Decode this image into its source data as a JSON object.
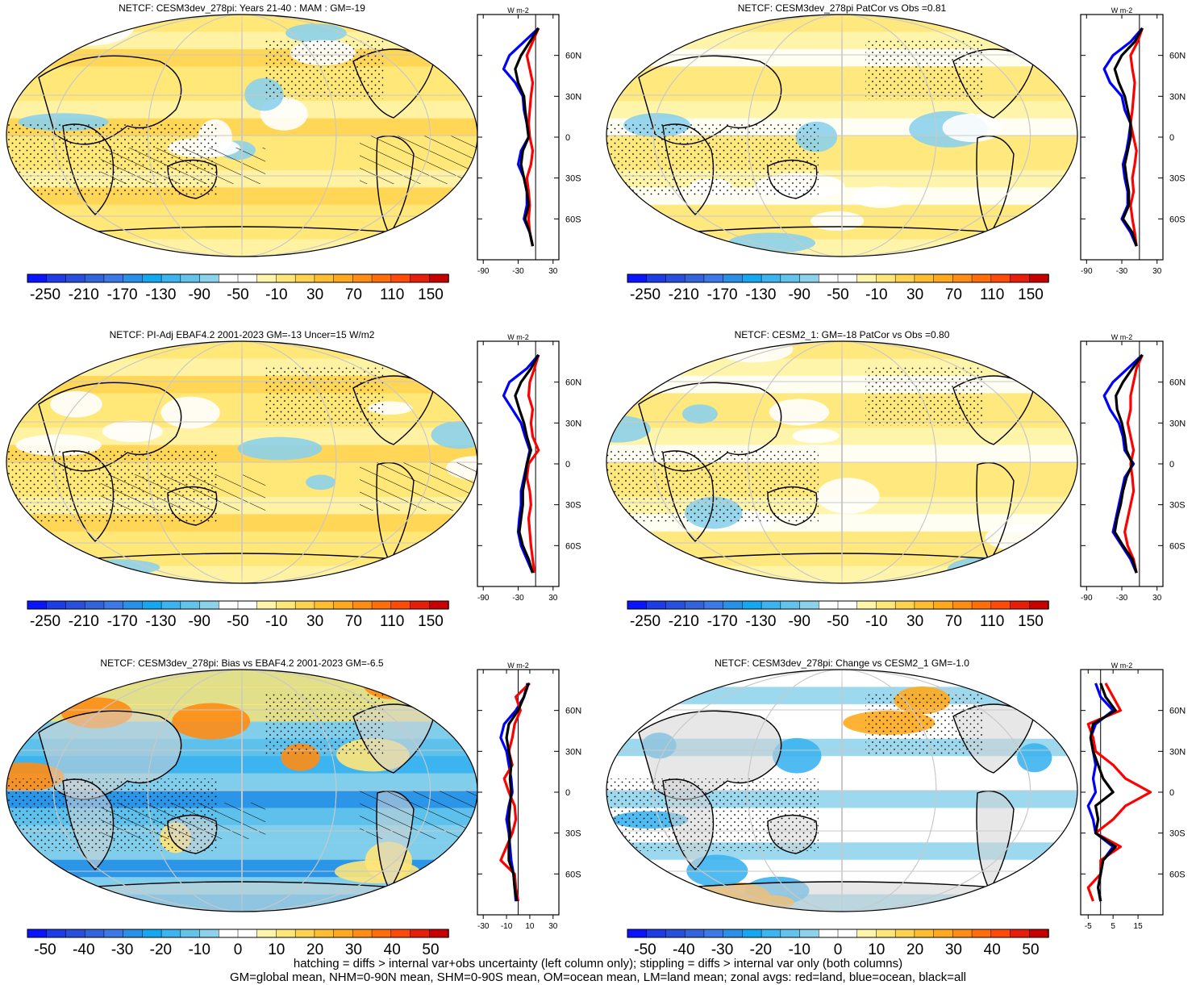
{
  "colors": {
    "land": "#d3d3d3",
    "outline": "#000000",
    "graticule": "#c8c8c8",
    "zonal_land": "#ff0000",
    "zonal_ocean": "#0000ff",
    "zonal_all": "#000000"
  },
  "scales": {
    "big": {
      "colors": [
        "#0a14ff",
        "#1e3ce6",
        "#2850dc",
        "#3264dc",
        "#3c78e6",
        "#2890e6",
        "#14a8f0",
        "#3cb4f0",
        "#64c3eb",
        "#8cd2eb",
        "#ffffff",
        "#ffffff",
        "#fff5aa",
        "#ffe678",
        "#ffd250",
        "#ffbe32",
        "#ffaa1e",
        "#ff8c14",
        "#ff6e0a",
        "#ff4b0a",
        "#e61e0a",
        "#c80000"
      ],
      "labels": [
        "-250",
        "-210",
        "-170",
        "-130",
        "-90",
        "-50",
        "-10",
        "30",
        "70",
        "110",
        "150"
      ]
    },
    "small": {
      "colors": [
        "#0a14ff",
        "#1e3ce6",
        "#2850dc",
        "#3264dc",
        "#3c78e6",
        "#2890e6",
        "#14a8f0",
        "#3cb4f0",
        "#64c3eb",
        "#8cd2eb",
        "#ffffff",
        "#ffffff",
        "#fff5aa",
        "#ffe678",
        "#ffd250",
        "#ffbe32",
        "#ffaa1e",
        "#ff8c14",
        "#ff6e0a",
        "#ff4b0a",
        "#e61e0a",
        "#c80000"
      ],
      "labels": [
        "-50",
        "-40",
        "-30",
        "-20",
        "-10",
        "0",
        "10",
        "20",
        "30",
        "40",
        "50"
      ]
    }
  },
  "footer": {
    "line1": "hatching = diffs > internal var+obs uncertainty (left column only); stippling = diffs > internal var only (both columns)",
    "line2": "GM=global mean, NHM=0-90N mean, SHM=0-90S mean, OM=ocean mean, LM=land mean; zonal avgs: red=land, blue=ocean, black=all"
  },
  "chart_data": [
    {
      "type": "heatmap",
      "title": "NETCF: CESM3dev_278pi: Years 21-40 : MAM : GM=-19",
      "scale": "big",
      "field": "mostly_negative",
      "hatch": true,
      "stipple": true,
      "zonal": {
        "unit": "W m-2",
        "xticks": [
          "-90",
          "-30",
          "30"
        ],
        "xlim": [
          -100,
          40
        ],
        "yticks": [
          "60N",
          "30N",
          "0",
          "30S",
          "60S"
        ],
        "lat": [
          80,
          70,
          60,
          50,
          40,
          30,
          20,
          10,
          0,
          -10,
          -20,
          -30,
          -40,
          -50,
          -60,
          -70,
          -80
        ],
        "land": [
          5,
          -5,
          -15,
          -10,
          -5,
          -8,
          -10,
          -12,
          -10,
          -5,
          -8,
          -15,
          -12,
          -10,
          -12,
          -10,
          -5
        ],
        "ocean": [
          5,
          -20,
          -45,
          -55,
          -35,
          -22,
          -20,
          -15,
          -12,
          -25,
          -30,
          -20,
          -15,
          -15,
          -20,
          -10,
          -5
        ],
        "all": [
          5,
          -10,
          -25,
          -35,
          -30,
          -20,
          -18,
          -15,
          -12,
          -22,
          -25,
          -20,
          -15,
          -12,
          -18,
          -10,
          -5
        ]
      }
    },
    {
      "type": "heatmap",
      "title": "NETCF: CESM3dev_278pi PatCor vs Obs =0.81",
      "scale": "big",
      "field": "mild_negative",
      "hatch": false,
      "stipple": true,
      "zonal": {
        "unit": "W m-2",
        "xticks": [
          "-90",
          "-30",
          "30"
        ],
        "xlim": [
          -100,
          40
        ],
        "yticks": [
          "60N",
          "30N",
          "0",
          "30S",
          "60S"
        ],
        "lat": [
          80,
          70,
          60,
          50,
          40,
          30,
          20,
          10,
          0,
          -10,
          -20,
          -30,
          -40,
          -50,
          -60,
          -70,
          -80
        ],
        "land": [
          5,
          -3,
          -15,
          -12,
          -8,
          -10,
          -12,
          -15,
          -10,
          -5,
          -8,
          -12,
          -10,
          -15,
          -12,
          -8,
          -5
        ],
        "ocean": [
          5,
          -15,
          -45,
          -60,
          -50,
          -30,
          -25,
          -15,
          -18,
          -22,
          -28,
          -25,
          -20,
          -20,
          -30,
          -15,
          -5
        ],
        "all": [
          5,
          -8,
          -30,
          -42,
          -35,
          -25,
          -20,
          -15,
          -15,
          -20,
          -25,
          -22,
          -18,
          -18,
          -28,
          -12,
          -5
        ]
      }
    },
    {
      "type": "heatmap",
      "title": "NETCF: PI-Adj EBAF4.2 2001-2023 GM=-13 Uncer=15 W/m2",
      "scale": "big",
      "field": "mostly_negative",
      "hatch": true,
      "stipple": true,
      "zonal": {
        "unit": "W m-2",
        "xticks": [
          "-90",
          "-30",
          "30"
        ],
        "xlim": [
          -100,
          40
        ],
        "yticks": [
          "60N",
          "30N",
          "0",
          "30S",
          "60S"
        ],
        "lat": [
          80,
          70,
          60,
          50,
          40,
          30,
          20,
          10,
          0,
          -10,
          -20,
          -30,
          -40,
          -50,
          -60,
          -70,
          -80
        ],
        "land": [
          5,
          -2,
          -10,
          -12,
          -5,
          -8,
          -5,
          5,
          -12,
          -15,
          -10,
          -8,
          -12,
          -10,
          -8,
          -5,
          -2
        ],
        "ocean": [
          5,
          -15,
          -45,
          -55,
          -40,
          -25,
          -18,
          -10,
          -15,
          -20,
          -25,
          -25,
          -28,
          -30,
          -25,
          -15,
          -5
        ],
        "all": [
          5,
          -8,
          -25,
          -35,
          -28,
          -20,
          -15,
          -8,
          -15,
          -18,
          -22,
          -22,
          -25,
          -28,
          -22,
          -12,
          -5
        ]
      }
    },
    {
      "type": "heatmap",
      "title": "NETCF: CESM2_1: GM=-18 PatCor vs Obs =0.80",
      "scale": "big",
      "field": "mild_negative",
      "hatch": false,
      "stipple": true,
      "zonal": {
        "unit": "W m-2",
        "xticks": [
          "-90",
          "-30",
          "30"
        ],
        "xlim": [
          -100,
          40
        ],
        "yticks": [
          "60N",
          "30N",
          "0",
          "30S",
          "60S"
        ],
        "lat": [
          80,
          70,
          60,
          50,
          40,
          30,
          20,
          10,
          0,
          -10,
          -20,
          -30,
          -40,
          -50,
          -60,
          -70,
          -80
        ],
        "land": [
          5,
          -5,
          -10,
          -15,
          -15,
          -20,
          -15,
          -10,
          -15,
          -12,
          -10,
          -15,
          -20,
          -25,
          -20,
          -10,
          -5
        ],
        "ocean": [
          5,
          -20,
          -45,
          -60,
          -50,
          -35,
          -28,
          -25,
          -10,
          -25,
          -30,
          -35,
          -40,
          -45,
          -30,
          -15,
          -5
        ],
        "all": [
          5,
          -12,
          -28,
          -40,
          -38,
          -30,
          -25,
          -22,
          -12,
          -22,
          -28,
          -32,
          -38,
          -42,
          -28,
          -12,
          -5
        ]
      }
    },
    {
      "type": "heatmap",
      "title": "NETCF: CESM3dev_278pi: Bias vs EBAF4.2 2001-2023 GM=-6.5",
      "scale": "small",
      "field": "bias",
      "hatch": true,
      "stipple": true,
      "zonal": {
        "unit": "W m-2",
        "xticks": [
          "-30",
          "-10",
          "10",
          "30"
        ],
        "xlim": [
          -35,
          35
        ],
        "yticks": [
          "60N",
          "30N",
          "0",
          "30S",
          "60S"
        ],
        "lat": [
          80,
          70,
          60,
          50,
          40,
          30,
          20,
          10,
          0,
          -10,
          -20,
          -30,
          -40,
          -50,
          -60,
          -70,
          -80
        ],
        "land": [
          10,
          -2,
          2,
          -3,
          -5,
          -8,
          -5,
          -12,
          -8,
          -3,
          -2,
          -5,
          -10,
          -15,
          -3,
          -2,
          0
        ],
        "ocean": [
          8,
          5,
          -2,
          -12,
          -15,
          -10,
          -8,
          -6,
          -5,
          -8,
          -10,
          -8,
          -7,
          -6,
          -4,
          -3,
          -2
        ],
        "all": [
          9,
          5,
          0,
          -8,
          -10,
          -8,
          -6,
          -7,
          -6,
          -7,
          -8,
          -7,
          -8,
          -8,
          -4,
          -3,
          -1
        ]
      }
    },
    {
      "type": "heatmap",
      "title": "NETCF: CESM3dev_278pi: Change vs CESM2_1 GM=-1.0",
      "scale": "small",
      "field": "change",
      "hatch": false,
      "stipple": true,
      "zonal": {
        "unit": "W m-2",
        "xticks": [
          "-5",
          "5",
          "15"
        ],
        "xlim": [
          -8,
          25
        ],
        "yticks": [
          "60N",
          "30N",
          "0",
          "30S",
          "60S"
        ],
        "lat": [
          80,
          70,
          60,
          50,
          40,
          30,
          20,
          10,
          0,
          -10,
          -20,
          -30,
          -40,
          -50,
          -60,
          -70,
          -80
        ],
        "land": [
          2,
          5,
          8,
          -5,
          -3,
          -2,
          5,
          10,
          20,
          10,
          5,
          -2,
          8,
          0,
          0,
          -5,
          -3
        ],
        "ocean": [
          -2,
          0,
          5,
          -2,
          -4,
          -3,
          -2,
          -3,
          -2,
          -5,
          -3,
          -2,
          5,
          1,
          0,
          -1,
          0
        ],
        "all": [
          0,
          2,
          6,
          -3,
          -4,
          -3,
          -1,
          1,
          5,
          -2,
          -1,
          -2,
          6,
          1,
          0,
          -1,
          0
        ]
      }
    }
  ]
}
